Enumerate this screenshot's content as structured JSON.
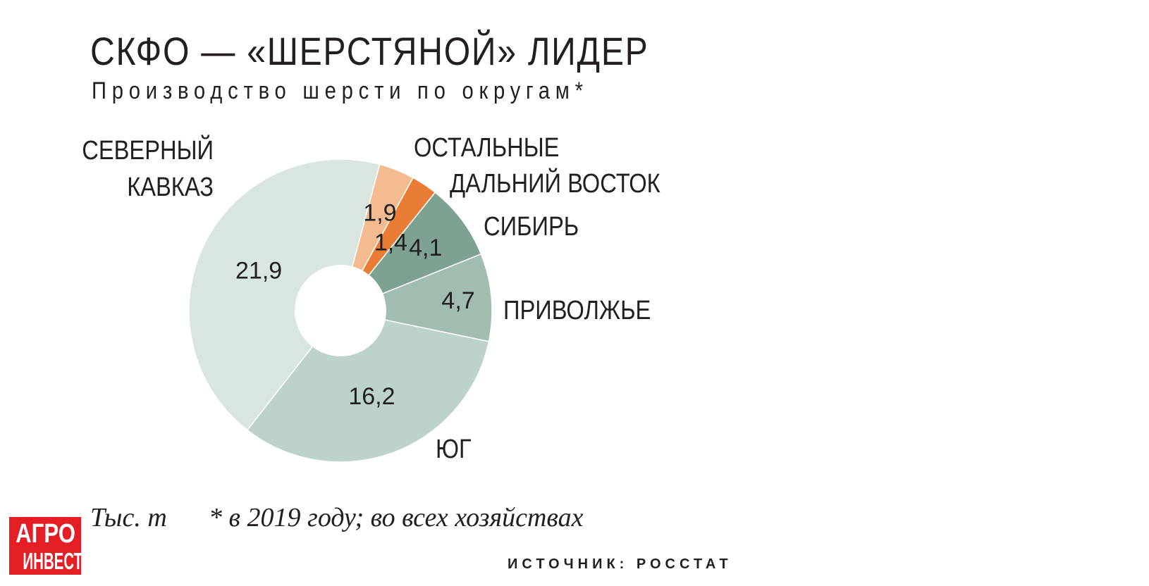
{
  "header": {
    "title": "СКФО — «ШЕРСТЯНОЙ» ЛИДЕР",
    "subtitle": "Производство шерсти по округам*"
  },
  "chart_data": {
    "type": "pie",
    "donut": true,
    "unit": "Тыс. т",
    "slices": [
      {
        "label": "ОСТАЛЬНЫЕ",
        "value": 1.9,
        "value_label": "1,9",
        "color": "#f4bb91"
      },
      {
        "label": "ДАЛЬНИЙ ВОСТОК",
        "value": 1.4,
        "value_label": "1,4",
        "color": "#ea7d36"
      },
      {
        "label": "СИБИРЬ",
        "value": 4.1,
        "value_label": "4,1",
        "color": "#7ea191"
      },
      {
        "label": "ПРИВОЛЖЬЕ",
        "value": 4.7,
        "value_label": "4,7",
        "color": "#a1bdb0"
      },
      {
        "label": "ЮГ",
        "value": 16.2,
        "value_label": "16,2",
        "color": "#bdd2c8"
      },
      {
        "label": "СЕВЕРНЫЙ КАВКАЗ",
        "value": 21.9,
        "value_label": "21,9",
        "color": "#d9e6df"
      }
    ]
  },
  "footer": {
    "unit_note": "Тыс. т",
    "footnote": "* в 2019 году; во всех хозяйствах",
    "source": "ИСТОЧНИК: РОССТАТ",
    "logo_line1": "АГРО",
    "logo_line2": "ИНВЕСТОР"
  }
}
